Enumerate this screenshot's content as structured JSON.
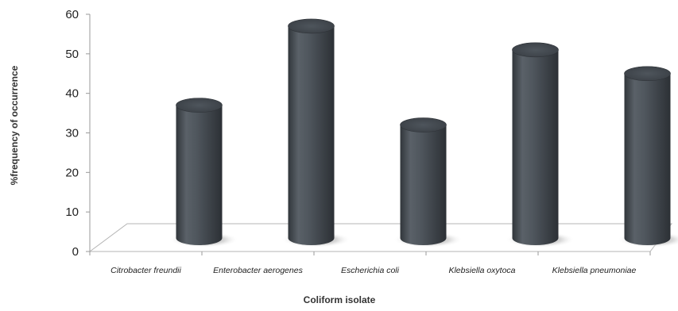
{
  "chart_data": {
    "type": "bar",
    "title": "",
    "xlabel": "Coliform isolate",
    "ylabel": "%frequency of occurrence",
    "categories": [
      "Citrobacter freundii",
      "Enterobacter aerogenes",
      "Escherichia coli",
      "Klebsiella oxytoca",
      "Klebsiella pneumoniae"
    ],
    "values": [
      37,
      57,
      32,
      51,
      45
    ],
    "ylim": [
      0,
      60
    ],
    "yticks": [
      "0",
      "10",
      "20",
      "30",
      "40",
      "50",
      "60"
    ],
    "grid": false,
    "legend": "none",
    "style": "3d-cylinder",
    "bar_color": "#4f565d"
  }
}
